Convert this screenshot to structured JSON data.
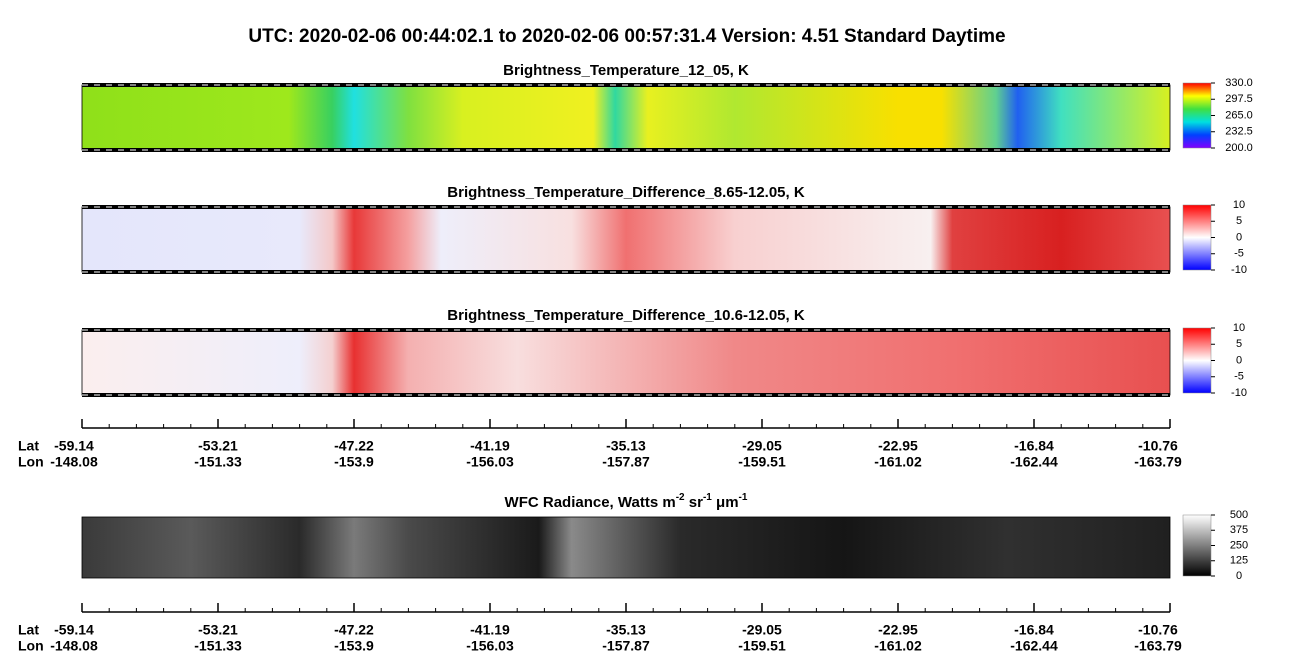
{
  "title": "UTC:  2020-02-06   00:44:02.1  to  2020-02-06   00:57:31.4    Version: 4.51  Standard Daytime",
  "panels": [
    {
      "title": [
        "Brightness_Temperature_12_05, K"
      ],
      "colorbar": {
        "lim": [
          200,
          330
        ],
        "ticks": [
          {
            "value": 200,
            "label": "200.0"
          },
          {
            "value": 232.5,
            "label": "232.5"
          },
          {
            "value": 265,
            "label": "265.0"
          },
          {
            "value": 297.5,
            "label": "297.5"
          },
          {
            "value": 330,
            "label": "330.0"
          }
        ]
      }
    },
    {
      "title": [
        "Brightness_Temperature_Difference_8.65-12.05, K"
      ],
      "colorbar": {
        "lim": [
          -10,
          10
        ],
        "ticks": [
          -10,
          -5,
          0,
          5,
          10
        ]
      }
    },
    {
      "title": [
        "Brightness_Temperature_Difference_10.6-12.05, K"
      ],
      "colorbar": {
        "lim": [
          -10,
          10
        ],
        "ticks": [
          -10,
          -5,
          0,
          5,
          10
        ]
      }
    },
    {
      "title": [
        "WFC Radiance, Watts m",
        "-2",
        " sr",
        "-1",
        " μm",
        "-1"
      ],
      "colorbar": {
        "lim": [
          0,
          500
        ],
        "ticks": [
          0,
          125,
          250,
          375,
          500
        ]
      }
    }
  ],
  "axes": [
    {
      "lat_label": "Lat",
      "lon_label": "Lon",
      "lat": [
        -59.14,
        -53.21,
        -47.22,
        -41.19,
        -35.13,
        -29.05,
        -22.95,
        -16.84,
        -10.76
      ],
      "lon": [
        -148.08,
        -151.33,
        -153.9,
        -156.03,
        -157.87,
        -159.51,
        -161.02,
        -162.44,
        -163.79
      ]
    },
    {
      "lat_label": "Lat",
      "lon_label": "Lon",
      "lat": [
        -59.14,
        -53.21,
        -47.22,
        -41.19,
        -35.13,
        -29.05,
        -22.95,
        -16.84,
        -10.76
      ],
      "lon": [
        -148.08,
        -151.33,
        -153.9,
        -156.03,
        -157.87,
        -159.51,
        -161.02,
        -162.44,
        -163.79
      ]
    }
  ]
}
